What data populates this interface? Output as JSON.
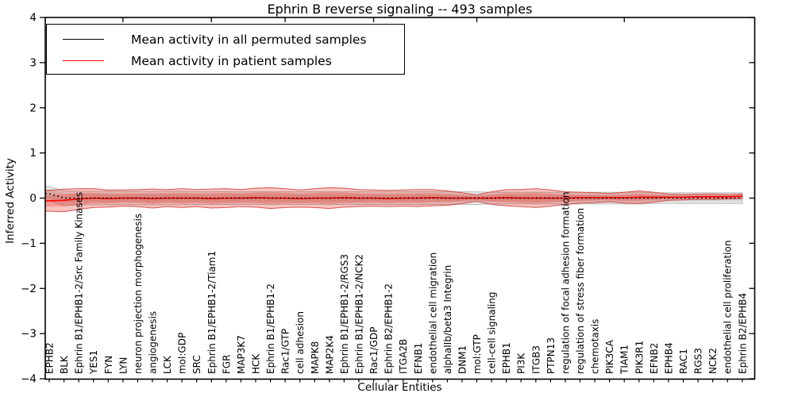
{
  "title": "Ephrin B reverse signaling -- 493 samples",
  "legend": {
    "items": [
      {
        "label": "Mean activity in all permuted samples",
        "color": "#000000"
      },
      {
        "label": "Mean activity in patient samples",
        "color": "#ff0000"
      }
    ]
  },
  "axes": {
    "x_label": "Cellular Entities",
    "y_label": "Inferred Activity",
    "y_range": [
      -4,
      4
    ],
    "y_ticks": [
      {
        "value": 4,
        "label": "4"
      },
      {
        "value": 3,
        "label": "3"
      },
      {
        "value": 2,
        "label": "2"
      },
      {
        "value": 1,
        "label": "1"
      },
      {
        "value": 0,
        "label": "0"
      },
      {
        "value": -1,
        "label": "−1"
      },
      {
        "value": -2,
        "label": "−2"
      },
      {
        "value": -3,
        "label": "−3"
      },
      {
        "value": -4,
        "label": "−4"
      }
    ]
  },
  "chart_data": {
    "type": "line",
    "title": "Ephrin B reverse signaling -- 493 samples",
    "xlabel": "Cellular Entities",
    "ylabel": "Inferred Activity",
    "ylim": [
      -4,
      4
    ],
    "grid": false,
    "legend_position": "upper left",
    "top_ticks_at_indices": [
      5,
      11,
      16,
      22,
      29,
      39
    ],
    "categories": [
      "EPHB2",
      "BLK",
      "Ephrin B1/EPHB1-2/Src Family Kinases",
      "YES1",
      "FYN",
      "LYN",
      "neuron projection morphogenesis",
      "angiogenesis",
      "LCK",
      "mol:GDP",
      "SRC",
      "Ephrin B1/EPHB1-2/Tiam1",
      "FGR",
      "MAP3K7",
      "HCK",
      "Ephrin B1/EPHB1-2",
      "Rac1/GTP",
      "cell adhesion",
      "MAPK8",
      "MAP2K4",
      "Ephrin B1/EPHB1-2/RGS3",
      "Ephrin B1/EPHB1-2/NCK2",
      "Rac1/GDP",
      "Ephrin B2/EPHB1-2",
      "ITGA2B",
      "EFNB1",
      "endothelial cell migration",
      "alphaIIb/beta3 Integrin",
      "DNM1",
      "mol:GTP",
      "cell-cell signaling",
      "EPHB1",
      "PI3K",
      "ITGB3",
      "PTPN13",
      "regulation of focal adhesion formation",
      "regulation of stress fiber formation",
      "chemotaxis",
      "PIK3CA",
      "TIAM1",
      "PIK3R1",
      "EFNB2",
      "EPHB4",
      "RAC1",
      "RGS3",
      "NCK2",
      "endothelial cell proliferation",
      "Ephrin B2/EPHB4"
    ],
    "series": [
      {
        "name": "Mean activity in all permuted samples",
        "color": "#000000",
        "style": "dotted",
        "band_color": "#828282",
        "values": [
          0.1,
          0,
          0,
          0,
          0,
          0,
          0,
          0,
          0,
          0,
          0,
          0,
          0,
          0,
          0,
          0,
          0,
          0,
          0,
          0,
          0,
          0,
          0,
          0,
          0,
          0,
          0,
          0,
          0,
          0,
          0,
          0,
          0,
          0,
          0,
          0,
          0,
          0,
          0,
          0,
          0,
          0,
          0,
          0,
          0,
          0,
          0,
          0
        ],
        "band_halfwidth": [
          0.16,
          0.16,
          0.15,
          0.15,
          0.15,
          0.15,
          0.15,
          0.15,
          0.15,
          0.15,
          0.14,
          0.14,
          0.14,
          0.14,
          0.14,
          0.14,
          0.14,
          0.14,
          0.14,
          0.14,
          0.14,
          0.14,
          0.14,
          0.14,
          0.14,
          0.14,
          0.14,
          0.14,
          0.14,
          0.14,
          0.13,
          0.13,
          0.13,
          0.13,
          0.13,
          0.13,
          0.13,
          0.13,
          0.13,
          0.13,
          0.13,
          0.12,
          0.12,
          0.12,
          0.12,
          0.12,
          0.12,
          0.12
        ]
      },
      {
        "name": "Mean activity in patient samples",
        "color": "#ff0000",
        "style": "solid",
        "band_color": "#e43a30",
        "values": [
          -0.06,
          -0.05,
          -0.02,
          0,
          -0.01,
          0,
          0,
          -0.01,
          0,
          0,
          0,
          -0.01,
          0,
          0,
          0.01,
          0,
          0,
          -0.01,
          0,
          0,
          0.01,
          0,
          0,
          -0.01,
          0,
          0,
          0.01,
          0,
          0,
          0,
          0,
          0.01,
          0,
          0,
          0,
          0,
          0.01,
          0.01,
          0.01,
          0.01,
          0.02,
          0.02,
          0.02,
          0.02,
          0.03,
          0.03,
          0.03,
          0.04
        ],
        "band_halfwidth": [
          0.23,
          0.25,
          0.23,
          0.21,
          0.19,
          0.18,
          0.19,
          0.21,
          0.19,
          0.21,
          0.19,
          0.21,
          0.21,
          0.19,
          0.21,
          0.23,
          0.21,
          0.19,
          0.21,
          0.23,
          0.21,
          0.19,
          0.18,
          0.18,
          0.18,
          0.19,
          0.18,
          0.16,
          0.12,
          0.07,
          0.14,
          0.18,
          0.19,
          0.21,
          0.18,
          0.14,
          0.12,
          0.11,
          0.09,
          0.12,
          0.14,
          0.11,
          0.07,
          0.06,
          0.06,
          0.06,
          0.05,
          0.05
        ]
      }
    ]
  }
}
